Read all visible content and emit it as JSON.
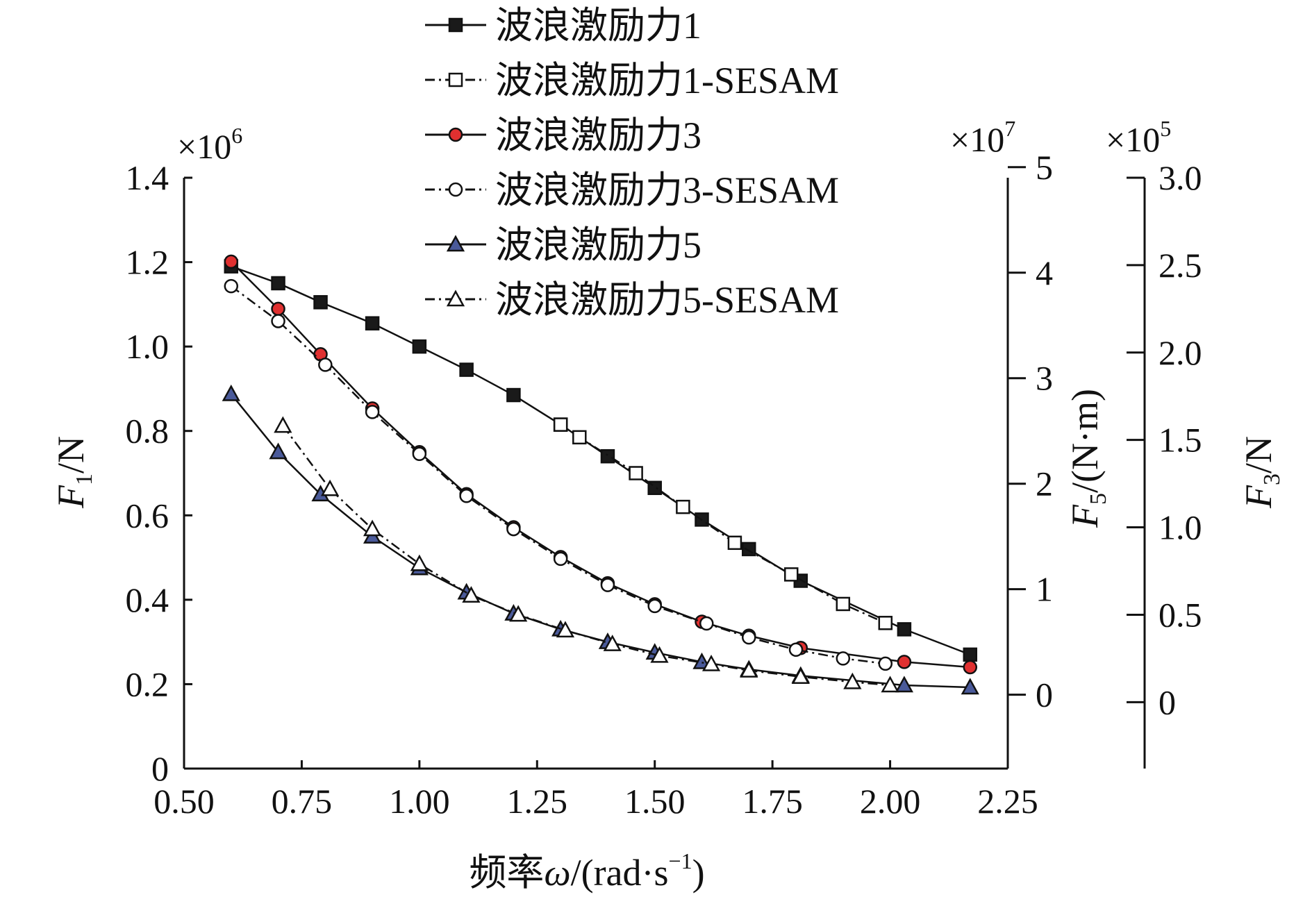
{
  "chart_data": {
    "type": "line",
    "title": "",
    "xlabel": "频率ω/(rad·s⁻¹)",
    "xlabel_parts": {
      "prefix": "频率",
      "symbol": "ω",
      "unit_base": "/(rad·s",
      "unit_sup": "−1",
      "unit_close": ")"
    },
    "xlim": [
      0.5,
      2.25
    ],
    "xticks": [
      "0.50",
      "0.75",
      "1.00",
      "1.25",
      "1.50",
      "1.75",
      "2.00",
      "2.25"
    ],
    "axes": {
      "left": {
        "label": "F1/N",
        "label_var": "F",
        "label_sub": "1",
        "label_unit": "/N",
        "multiplier_base": "×10",
        "multiplier_exp": "6",
        "ylim": [
          0,
          1.4
        ],
        "ticks": [
          "0",
          "0.2",
          "0.4",
          "0.6",
          "0.8",
          "1.0",
          "1.2",
          "1.4"
        ]
      },
      "right_inner": {
        "label": "F5/(N·m)",
        "label_var": "F",
        "label_sub": "5",
        "label_unit": "/(N·m)",
        "multiplier_base": "×10",
        "multiplier_exp": "7",
        "ylim": [
          -0.7,
          4.9
        ],
        "ticks": [
          "0",
          "1",
          "2",
          "3",
          "4",
          "5"
        ]
      },
      "right_outer": {
        "label": "F3/N",
        "label_var": "F",
        "label_sub": "3",
        "label_unit": "/N",
        "multiplier_base": "×10",
        "multiplier_exp": "5",
        "ylim": [
          -0.38,
          3.0
        ],
        "ticks": [
          "0",
          "0.5",
          "1.0",
          "1.5",
          "2.0",
          "2.5",
          "3.0"
        ]
      }
    },
    "series": [
      {
        "name": "波浪激励力1",
        "axis": "left",
        "marker": "square",
        "filled": true,
        "dash": "solid",
        "x": [
          0.6,
          0.7,
          0.79,
          0.9,
          1.0,
          1.1,
          1.2,
          1.3,
          1.4,
          1.5,
          1.6,
          1.7,
          1.81,
          2.03,
          2.17
        ],
        "y": [
          1.19,
          1.15,
          1.105,
          1.055,
          1.0,
          0.945,
          0.885,
          0.815,
          0.74,
          0.665,
          0.59,
          0.52,
          0.445,
          0.33,
          0.27
        ]
      },
      {
        "name": "波浪激励力1-SESAM",
        "axis": "left",
        "marker": "square",
        "filled": false,
        "dash": "dashdot",
        "x": [
          1.3,
          1.34,
          1.46,
          1.56,
          1.67,
          1.79,
          1.9,
          1.99
        ],
        "y": [
          0.815,
          0.785,
          0.7,
          0.62,
          0.535,
          0.46,
          0.39,
          0.345
        ]
      },
      {
        "name": "波浪激励力3",
        "axis": "right_outer",
        "marker": "circle",
        "filled": true,
        "dash": "solid",
        "x": [
          0.6,
          0.7,
          0.79,
          0.9,
          1.0,
          1.1,
          1.2,
          1.3,
          1.4,
          1.5,
          1.6,
          1.7,
          1.81,
          2.03,
          2.17
        ],
        "y": [
          2.52,
          2.25,
          1.99,
          1.68,
          1.43,
          1.19,
          1.0,
          0.83,
          0.68,
          0.56,
          0.46,
          0.38,
          0.31,
          0.23,
          0.2
        ]
      },
      {
        "name": "波浪激励力3-SESAM",
        "axis": "right_outer",
        "marker": "circle",
        "filled": false,
        "dash": "dashdot",
        "x": [
          0.6,
          0.7,
          0.8,
          0.9,
          1.0,
          1.1,
          1.2,
          1.3,
          1.4,
          1.5,
          1.61,
          1.7,
          1.8,
          1.9,
          1.99
        ],
        "y": [
          2.38,
          2.18,
          1.93,
          1.66,
          1.42,
          1.18,
          0.99,
          0.82,
          0.67,
          0.55,
          0.45,
          0.37,
          0.3,
          0.25,
          0.22
        ]
      },
      {
        "name": "波浪激励力5",
        "axis": "right_inner",
        "marker": "triangle",
        "filled": true,
        "dash": "solid",
        "x": [
          0.6,
          0.7,
          0.79,
          0.9,
          1.0,
          1.1,
          1.2,
          1.3,
          1.4,
          1.5,
          1.6,
          1.7,
          1.81,
          2.03,
          2.17
        ],
        "y": [
          2.85,
          2.3,
          1.9,
          1.5,
          1.2,
          0.97,
          0.77,
          0.62,
          0.5,
          0.4,
          0.31,
          0.24,
          0.18,
          0.09,
          0.07
        ]
      },
      {
        "name": "波浪激励力5-SESAM",
        "axis": "right_inner",
        "marker": "triangle",
        "filled": false,
        "dash": "dashdot",
        "x": [
          0.71,
          0.81,
          0.9,
          1.0,
          1.11,
          1.21,
          1.31,
          1.41,
          1.51,
          1.62,
          1.7,
          1.81,
          1.92,
          2.0
        ],
        "y": [
          2.55,
          1.95,
          1.57,
          1.24,
          0.94,
          0.76,
          0.61,
          0.48,
          0.37,
          0.29,
          0.23,
          0.17,
          0.12,
          0.09
        ]
      }
    ],
    "legend_position": "top"
  },
  "colors": {
    "square_fill": "#1a1a1a",
    "circle_fill": "#e03030",
    "triangle_fill": "#4a5a9a",
    "open_fill": "#ffffff",
    "stroke": "#111111"
  }
}
